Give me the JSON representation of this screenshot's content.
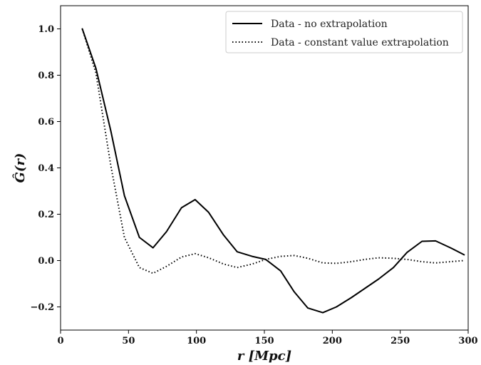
{
  "chart_data": {
    "type": "line",
    "title": "",
    "xlabel": "r [Mpc]",
    "ylabel": "Ĝ(r)",
    "xlim": [
      0,
      300
    ],
    "ylim": [
      -0.3,
      1.1
    ],
    "xticks": [
      0,
      50,
      100,
      150,
      200,
      250,
      300
    ],
    "xtick_labels": [
      "0",
      "50",
      "100",
      "150",
      "200",
      "250",
      "300"
    ],
    "yticks": [
      -0.2,
      0.0,
      0.2,
      0.4,
      0.6,
      0.8,
      1.0
    ],
    "ytick_labels": [
      "−0.2",
      "0.0",
      "0.2",
      "0.4",
      "0.6",
      "0.8",
      "1.0"
    ],
    "grid": false,
    "legend_position": "top-right",
    "series": [
      {
        "name": "Data - no extrapolation",
        "style": "solid",
        "color": "#000000",
        "x": [
          16,
          26,
          37,
          47,
          58,
          68,
          78,
          89,
          99,
          109,
          120,
          130,
          141,
          151,
          162,
          172,
          182,
          193,
          203,
          214,
          224,
          234,
          245,
          255,
          266,
          276,
          287,
          297
        ],
        "y": [
          1.0,
          0.83,
          0.56,
          0.28,
          0.1,
          0.055,
          0.125,
          0.228,
          0.263,
          0.208,
          0.11,
          0.038,
          0.018,
          0.005,
          -0.045,
          -0.135,
          -0.205,
          -0.225,
          -0.2,
          -0.16,
          -0.12,
          -0.08,
          -0.03,
          0.035,
          0.083,
          0.085,
          0.055,
          0.025
        ]
      },
      {
        "name": "Data - constant value extrapolation",
        "style": "dotted",
        "color": "#000000",
        "x": [
          16,
          26,
          37,
          47,
          58,
          68,
          78,
          89,
          99,
          109,
          120,
          130,
          141,
          151,
          162,
          172,
          182,
          193,
          203,
          214,
          224,
          234,
          245,
          255,
          266,
          276,
          287,
          297
        ],
        "y": [
          1.0,
          0.81,
          0.41,
          0.1,
          -0.03,
          -0.055,
          -0.025,
          0.015,
          0.03,
          0.012,
          -0.015,
          -0.03,
          -0.015,
          0.005,
          0.018,
          0.022,
          0.01,
          -0.01,
          -0.012,
          -0.005,
          0.005,
          0.012,
          0.01,
          0.005,
          -0.005,
          -0.01,
          -0.005,
          0.0
        ]
      }
    ]
  }
}
